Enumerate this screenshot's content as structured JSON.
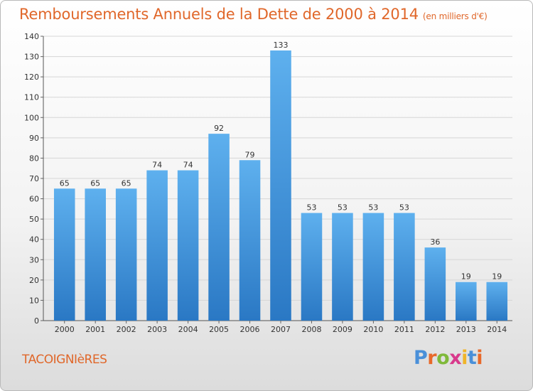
{
  "chart_data": {
    "type": "bar",
    "title": "Remboursements Annuels de la Dette de 2000 à 2014",
    "subtitle": "(en milliers d'€)",
    "categories": [
      "2000",
      "2001",
      "2002",
      "2003",
      "2004",
      "2005",
      "2006",
      "2007",
      "2008",
      "2009",
      "2010",
      "2011",
      "2012",
      "2013",
      "2014"
    ],
    "values": [
      65,
      65,
      65,
      74,
      74,
      92,
      79,
      133,
      53,
      53,
      53,
      53,
      36,
      19,
      19
    ],
    "ylim": [
      0,
      140
    ],
    "yticks": [
      0,
      10,
      20,
      30,
      40,
      50,
      60,
      70,
      80,
      90,
      100,
      110,
      120,
      130,
      140
    ],
    "xlabel": "",
    "ylabel": "",
    "grid": true,
    "bar_color": "#3d8fd8"
  },
  "town": "TACOIGNIèRES",
  "logo": {
    "text": "Proxiti",
    "colors": [
      "#4a90d9",
      "#e8692a",
      "#7fb93a",
      "#d83a8c",
      "#f0b42a",
      "#4a90d9",
      "#e8692a"
    ]
  }
}
